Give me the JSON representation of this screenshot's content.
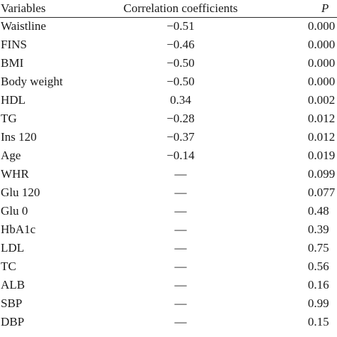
{
  "table": {
    "headers": {
      "variables": "Variables",
      "correlation": "Correlation coefficients",
      "p": "P"
    },
    "rows": [
      {
        "variable": "Waistline",
        "correlation": "−0.51",
        "p": "0.000"
      },
      {
        "variable": "FINS",
        "correlation": "−0.46",
        "p": "0.000"
      },
      {
        "variable": "BMI",
        "correlation": "−0.50",
        "p": "0.000"
      },
      {
        "variable": "Body weight",
        "correlation": "−0.50",
        "p": "0.000"
      },
      {
        "variable": "HDL",
        "correlation": "0.34",
        "p": "0.002"
      },
      {
        "variable": "TG",
        "correlation": "−0.28",
        "p": "0.012"
      },
      {
        "variable": "Ins 120",
        "correlation": "−0.37",
        "p": "0.012"
      },
      {
        "variable": "Age",
        "correlation": "−0.14",
        "p": "0.019"
      },
      {
        "variable": "WHR",
        "correlation": "—",
        "p": "0.099"
      },
      {
        "variable": "Glu 120",
        "correlation": "—",
        "p": "0.077"
      },
      {
        "variable": "Glu 0",
        "correlation": "—",
        "p": "0.48"
      },
      {
        "variable": "HbA1c",
        "correlation": "—",
        "p": "0.39"
      },
      {
        "variable": "LDL",
        "correlation": "—",
        "p": "0.75"
      },
      {
        "variable": "TC",
        "correlation": "—",
        "p": "0.56"
      },
      {
        "variable": "ALB",
        "correlation": "—",
        "p": "0.16"
      },
      {
        "variable": "SBP",
        "correlation": "—",
        "p": "0.99"
      },
      {
        "variable": "DBP",
        "correlation": "—",
        "p": "0.15"
      }
    ]
  }
}
